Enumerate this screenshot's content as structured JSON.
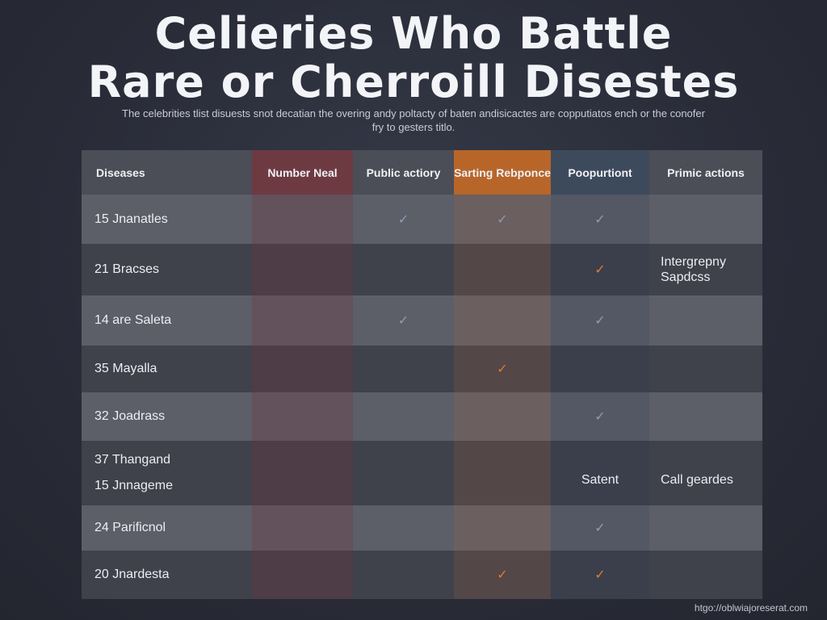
{
  "title_line1": "Celieries Who Battle",
  "title_line2": "Rare or Cherroill Disestes",
  "subtitle": "The celebrities tlist disuests snot decatian the overing andy poltacty of baten andisicactes are copputiatos ench or the conofer fry to gesters titlo.",
  "columns": [
    "Diseases",
    "Number Neal",
    "Public actiory",
    "Sarting Rebponce",
    "Poopurtiont",
    "Primic actions"
  ],
  "rows": [
    {
      "name": "15 Jnanatles",
      "marks": [
        "",
        "",
        "blue",
        "blue",
        "blue",
        ""
      ],
      "extra": ""
    },
    {
      "name": "21 Bracses",
      "marks": [
        "",
        "",
        "",
        "",
        "orange",
        ""
      ],
      "extra": "Intergrepny Sapdcss"
    },
    {
      "name": "14 are Saleta",
      "marks": [
        "",
        "",
        "blue",
        "",
        "blue",
        ""
      ],
      "extra": ""
    },
    {
      "name": "35 Mayalla",
      "marks": [
        "",
        "",
        "",
        "orange",
        "",
        ""
      ],
      "extra": ""
    },
    {
      "name": "32 Joadrass",
      "marks": [
        "",
        "",
        "",
        "",
        "blue",
        ""
      ],
      "extra": ""
    },
    {
      "name": "37 Thangand",
      "name2": "15 Jnnageme",
      "marks": [
        "",
        "",
        "",
        "",
        "",
        ""
      ],
      "col4_text": "Satent",
      "extra": "Call geardes"
    },
    {
      "name": "24 Parificnol",
      "marks": [
        "",
        "",
        "",
        "",
        "blue",
        ""
      ],
      "extra": ""
    },
    {
      "name": "20 Jnardesta",
      "marks": [
        "",
        "",
        "",
        "orange",
        "orange",
        ""
      ],
      "extra": ""
    }
  ],
  "check_glyph": "✓",
  "colors": {
    "accent_orange": "#e07a2e",
    "header_red": "#6e3a42",
    "header_blue": "#3d4a5c"
  },
  "footer_url": "htgo://oblwiajoreserat.com"
}
